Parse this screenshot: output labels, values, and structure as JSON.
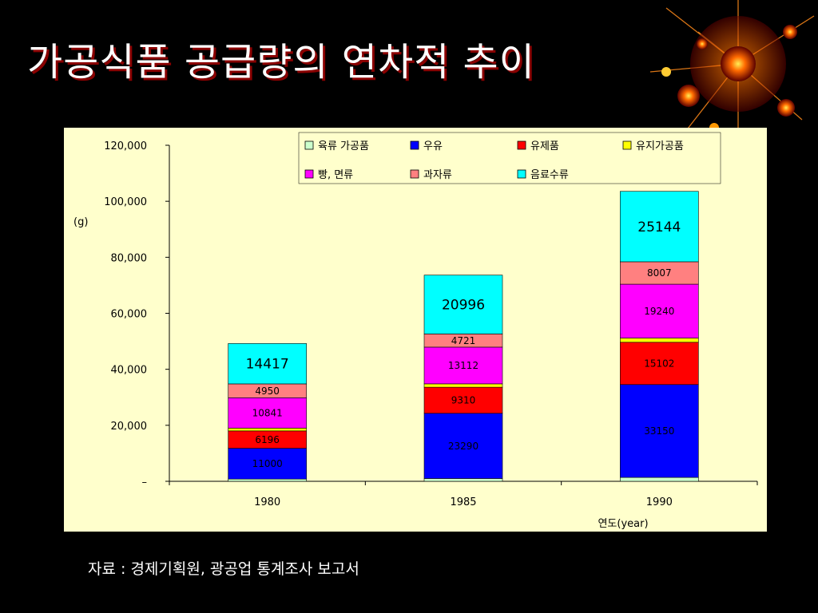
{
  "slide": {
    "title": "가공식품 공급량의 연차적 추이",
    "source_note": "자료 : 경제기획원, 광공업 통계조사 보고서"
  },
  "decoration": {
    "icon": "ornament-fireworks-icon"
  },
  "chart_data": {
    "type": "bar",
    "stacked": true,
    "categories": [
      "1980",
      "1985",
      "1990"
    ],
    "series": [
      {
        "name": "육류 가공품",
        "color": "#ccffcc",
        "values": [
          800,
          1000,
          1400
        ]
      },
      {
        "name": "우유",
        "color": "#0000ff",
        "values": [
          11000,
          23290,
          33150
        ]
      },
      {
        "name": "유제품",
        "color": "#ff0000",
        "values": [
          6196,
          9310,
          15102
        ]
      },
      {
        "name": "유지가공품",
        "color": "#ffff00",
        "values": [
          1000,
          1200,
          1500
        ]
      },
      {
        "name": "빵, 면류",
        "color": "#ff00ff",
        "values": [
          10841,
          13112,
          19240
        ]
      },
      {
        "name": "과자류",
        "color": "#ff8080",
        "values": [
          4950,
          4721,
          8007
        ]
      },
      {
        "name": "음료수류",
        "color": "#00ffff",
        "values": [
          14417,
          20996,
          25144
        ]
      }
    ],
    "data_labels": [
      {
        "series": 1,
        "labels": [
          "11000",
          "23290",
          "33150"
        ]
      },
      {
        "series": 2,
        "labels": [
          "6196",
          "9310",
          "15102"
        ]
      },
      {
        "series": 4,
        "labels": [
          "10841",
          "13112",
          "19240"
        ]
      },
      {
        "series": 5,
        "labels": [
          "4950",
          "4721",
          "8007"
        ]
      },
      {
        "series": 6,
        "labels": [
          "14417",
          "20996",
          "25144"
        ]
      }
    ],
    "y_ticks": [
      "120,000",
      "100,000",
      "80,000",
      "60,000",
      "40,000",
      "20,000",
      "–"
    ],
    "ylim": [
      0,
      120000
    ],
    "ylabel": "(g)",
    "xlabel": "연도(year)",
    "legend_position": "top-right"
  }
}
